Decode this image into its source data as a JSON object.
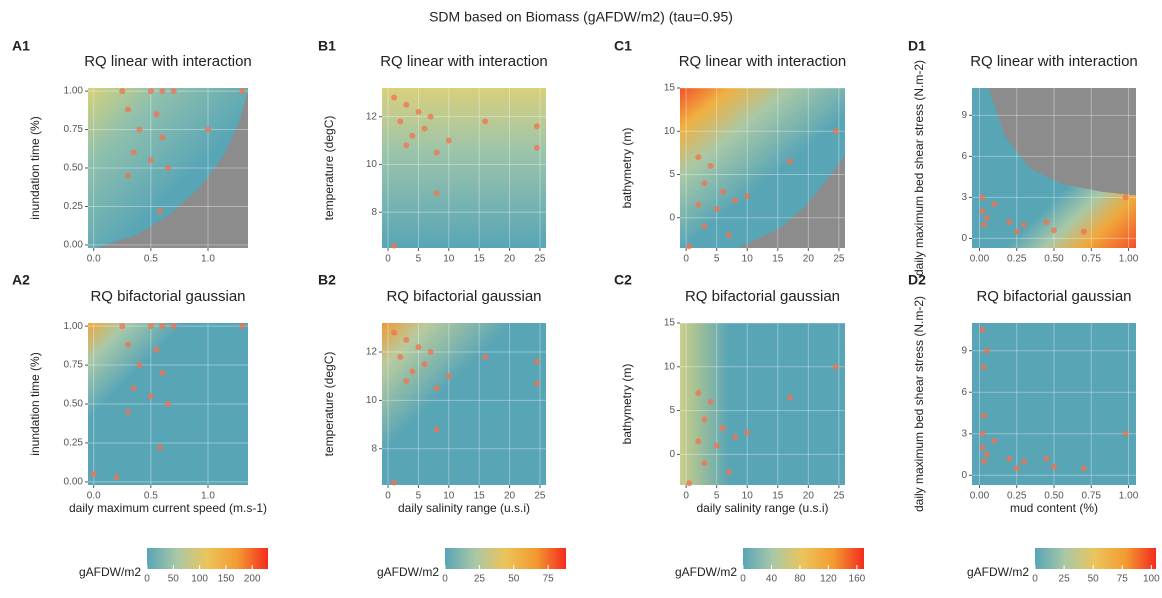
{
  "title": "SDM based on Biomass (gAFDW/m2) (tau=0.95)",
  "chart_data": [
    {
      "type": "scatter",
      "panel_label": "A1",
      "title": "RQ linear with interaction",
      "ylabel": "inundation time (%)",
      "color": "#f4714e",
      "xlim": [
        -0.05,
        1.35
      ],
      "xticks": [
        {
          "value": 0,
          "label": "0.0"
        },
        {
          "value": 0.5,
          "label": "0.5"
        },
        {
          "value": 1,
          "label": "1.0"
        }
      ],
      "ylim": [
        -0.02,
        1.02
      ],
      "yticks": [
        {
          "value": 0,
          "label": "0.00"
        },
        {
          "value": 0.25,
          "label": "0.25"
        },
        {
          "value": 0.5,
          "label": "0.50"
        },
        {
          "value": 0.75,
          "label": "0.75"
        },
        {
          "value": 1,
          "label": "1.00"
        }
      ],
      "x": [
        0.25,
        0.5,
        0.6,
        0.7,
        0.3,
        0.55,
        0.4,
        0.6,
        0.35,
        0.5,
        0.65,
        0.3,
        0.58,
        1.3,
        1.0
      ],
      "y": [
        1.0,
        1.0,
        1.0,
        1.0,
        0.88,
        0.85,
        0.75,
        0.7,
        0.6,
        0.55,
        0.5,
        0.45,
        0.22,
        1.0,
        0.75
      ]
    },
    {
      "type": "scatter",
      "panel_label": "B1",
      "title": "RQ linear with interaction",
      "ylabel": "temperature (degC)",
      "color": "#f4714e",
      "xlim": [
        -1,
        26
      ],
      "xticks": [
        0,
        5,
        10,
        15,
        20,
        25
      ],
      "ylim": [
        6.5,
        13.2
      ],
      "yticks": [
        8,
        10,
        12
      ],
      "x": [
        1,
        3,
        5,
        2,
        7,
        4,
        6,
        8,
        10,
        3,
        8,
        16,
        24.5,
        24.5,
        1
      ],
      "y": [
        12.8,
        12.5,
        12.2,
        11.8,
        12,
        11.2,
        11.5,
        10.5,
        11,
        10.8,
        8.8,
        11.8,
        11.6,
        10.7,
        6.6
      ]
    },
    {
      "type": "scatter",
      "panel_label": "C1",
      "title": "RQ linear with interaction",
      "ylabel": "bathymetry (m)",
      "color": "#f4714e",
      "xlim": [
        -1,
        26
      ],
      "xticks": [
        0,
        5,
        10,
        15,
        20,
        25
      ],
      "ylim": [
        -3.5,
        15
      ],
      "yticks": [
        0,
        5,
        10,
        15
      ],
      "x": [
        2,
        4,
        3,
        6,
        5,
        8,
        10,
        3,
        7,
        2,
        17,
        24.5,
        0.5
      ],
      "y": [
        7,
        6,
        4,
        3,
        1,
        2,
        2.5,
        -1,
        -2,
        1.5,
        6.5,
        10,
        -3.3
      ]
    },
    {
      "type": "scatter",
      "panel_label": "D1",
      "title": "RQ linear with interaction",
      "ylabel": "daily maximum bed shear stress (N.m-2)",
      "color": "#f4714e",
      "xlim": [
        -0.05,
        1.05
      ],
      "xticks": [
        {
          "value": 0,
          "label": "0.00"
        },
        {
          "value": 0.25,
          "label": "0.25"
        },
        {
          "value": 0.5,
          "label": "0.50"
        },
        {
          "value": 0.75,
          "label": "0.75"
        },
        {
          "value": 1,
          "label": "1.00"
        }
      ],
      "ylim": [
        -0.7,
        11
      ],
      "yticks": [
        0,
        3,
        6,
        9
      ],
      "x": [
        0.02,
        0.05,
        0.1,
        0.03,
        0.2,
        0.3,
        0.45,
        0.5,
        0.7,
        0.25,
        0.02,
        0.98
      ],
      "y": [
        2,
        1.5,
        2.5,
        1,
        1.2,
        1,
        1.2,
        0.6,
        0.5,
        0.5,
        3,
        3
      ]
    },
    {
      "type": "scatter",
      "panel_label": "A2",
      "title": "RQ bifactorial gaussian",
      "xlabel": "daily maximum current speed (m.s-1)",
      "ylabel": "inundation time (%)",
      "color": "#f4714e",
      "xlim": [
        -0.05,
        1.35
      ],
      "xticks": [
        {
          "value": 0,
          "label": "0.0"
        },
        {
          "value": 0.5,
          "label": "0.5"
        },
        {
          "value": 1,
          "label": "1.0"
        }
      ],
      "ylim": [
        -0.02,
        1.02
      ],
      "yticks": [
        {
          "value": 0,
          "label": "0.00"
        },
        {
          "value": 0.25,
          "label": "0.25"
        },
        {
          "value": 0.5,
          "label": "0.50"
        },
        {
          "value": 0.75,
          "label": "0.75"
        },
        {
          "value": 1,
          "label": "1.00"
        }
      ],
      "x": [
        0.25,
        0.5,
        0.6,
        0.7,
        0.3,
        0.55,
        0.4,
        0.6,
        0.35,
        0.5,
        0.65,
        0.3,
        0.58,
        1.3,
        0.0,
        0.2
      ],
      "y": [
        1.0,
        1.0,
        1.0,
        1.0,
        0.88,
        0.85,
        0.75,
        0.7,
        0.6,
        0.55,
        0.5,
        0.45,
        0.22,
        1.0,
        0.05,
        0.03
      ]
    },
    {
      "type": "scatter",
      "panel_label": "B2",
      "title": "RQ bifactorial gaussian",
      "xlabel": "daily salinity range (u.s.i)",
      "ylabel": "temperature (degC)",
      "color": "#f4714e",
      "xlim": [
        -1,
        26
      ],
      "xticks": [
        0,
        5,
        10,
        15,
        20,
        25
      ],
      "ylim": [
        6.5,
        13.2
      ],
      "yticks": [
        8,
        10,
        12
      ],
      "x": [
        1,
        3,
        5,
        2,
        7,
        4,
        6,
        8,
        10,
        3,
        8,
        16,
        24.5,
        24.5,
        1
      ],
      "y": [
        12.8,
        12.5,
        12.2,
        11.8,
        12,
        11.2,
        11.5,
        10.5,
        11,
        10.8,
        8.8,
        11.8,
        11.6,
        10.7,
        6.6
      ]
    },
    {
      "type": "scatter",
      "panel_label": "C2",
      "title": "RQ bifactorial gaussian",
      "xlabel": "daily salinity range (u.s.i)",
      "ylabel": "bathymetry (m)",
      "color": "#f4714e",
      "xlim": [
        -1,
        26
      ],
      "xticks": [
        0,
        5,
        10,
        15,
        20,
        25
      ],
      "ylim": [
        -3.5,
        15
      ],
      "yticks": [
        0,
        5,
        10,
        15
      ],
      "x": [
        2,
        4,
        3,
        6,
        5,
        8,
        10,
        3,
        7,
        2,
        17,
        24.5,
        0.5
      ],
      "y": [
        7,
        6,
        4,
        3,
        1,
        2,
        2.5,
        -1,
        -2,
        1.5,
        6.5,
        10,
        -3.3
      ]
    },
    {
      "type": "scatter",
      "panel_label": "D2",
      "title": "RQ bifactorial gaussian",
      "xlabel": "mud content (%)",
      "ylabel": "daily maximum bed shear stress (N.m-2)",
      "color": "#f4714e",
      "xlim": [
        -0.05,
        1.05
      ],
      "xticks": [
        {
          "value": 0,
          "label": "0.00"
        },
        {
          "value": 0.25,
          "label": "0.25"
        },
        {
          "value": 0.5,
          "label": "0.50"
        },
        {
          "value": 0.75,
          "label": "0.75"
        },
        {
          "value": 1,
          "label": "1.00"
        }
      ],
      "ylim": [
        -0.7,
        11
      ],
      "yticks": [
        0,
        3,
        6,
        9
      ],
      "x": [
        0.02,
        0.05,
        0.1,
        0.03,
        0.2,
        0.3,
        0.45,
        0.5,
        0.7,
        0.25,
        0.02,
        0.98,
        0.03,
        0.02,
        0.05,
        0.03
      ],
      "y": [
        2,
        1.5,
        2.5,
        1,
        1.2,
        1,
        1.2,
        0.6,
        0.5,
        0.5,
        3,
        3,
        7.8,
        10.5,
        9,
        4.3
      ]
    }
  ],
  "colorbars": [
    {
      "label": "gAFDW/m2",
      "lim": [
        0,
        230
      ],
      "ticks": [
        0,
        50,
        100,
        150,
        200
      ],
      "colors": [
        "#58a5b6",
        "#a9c8a6",
        "#ecc45a",
        "#f39a30",
        "#f52b1f"
      ]
    },
    {
      "label": "gAFDW/m2",
      "lim": [
        0,
        88
      ],
      "ticks": [
        0,
        25,
        50,
        75
      ],
      "colors": [
        "#58a5b6",
        "#a9c8a6",
        "#ecc45a",
        "#f39a30",
        "#f52b1f"
      ]
    },
    {
      "label": "gAFDW/m2",
      "lim": [
        0,
        170
      ],
      "ticks": [
        0,
        40,
        80,
        120,
        160
      ],
      "colors": [
        "#58a5b6",
        "#a9c8a6",
        "#ecc45a",
        "#f39a30",
        "#f52b1f"
      ]
    },
    {
      "label": "gAFDW/m2",
      "lim": [
        0,
        104
      ],
      "ticks": [
        0,
        25,
        50,
        75,
        100
      ],
      "colors": [
        "#58a5b6",
        "#a9c8a6",
        "#ecc45a",
        "#f39a30",
        "#f52b1f"
      ]
    }
  ]
}
